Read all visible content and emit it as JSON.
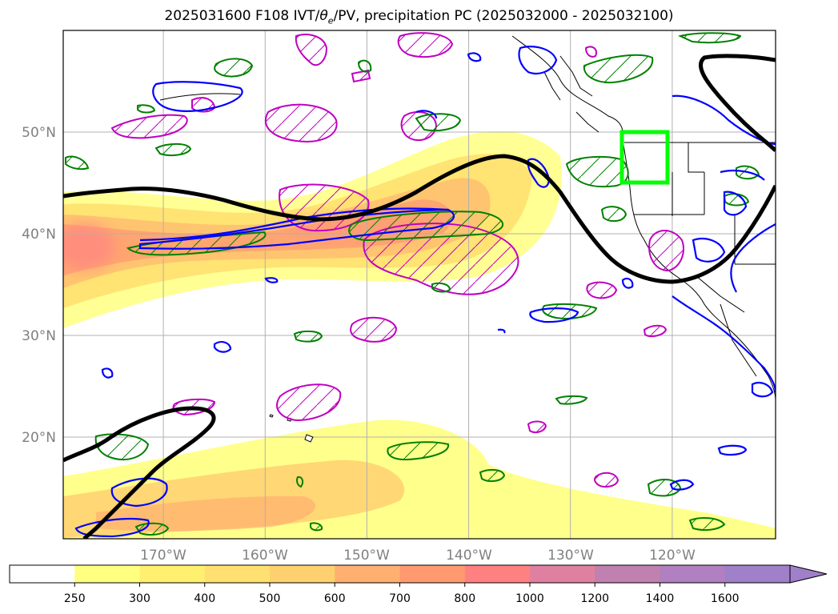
{
  "title": {
    "prefix": "2025031600 F108 IVT/",
    "theta": "θ",
    "sub": "e",
    "suffix": "/PV, precipitation PC (2025032000 - 2025032100)"
  },
  "map": {
    "projection": "PlateCarree",
    "lon_range": [
      -180,
      -110
    ],
    "lat_range": [
      10,
      60
    ],
    "lat_ticks": [
      {
        "value": 50,
        "label": "50°N"
      },
      {
        "value": 40,
        "label": "40°N"
      },
      {
        "value": 30,
        "label": "30°N"
      },
      {
        "value": 20,
        "label": "20°N"
      }
    ],
    "lon_ticks": [
      {
        "value": -170,
        "label": "170°W"
      },
      {
        "value": -160,
        "label": "160°W"
      },
      {
        "value": -150,
        "label": "150°W"
      },
      {
        "value": -140,
        "label": "140°W"
      },
      {
        "value": -130,
        "label": "130°W"
      },
      {
        "value": -120,
        "label": "120°W"
      }
    ],
    "grid": true,
    "highlight_box": {
      "lon": [
        -125,
        -120.5
      ],
      "lat": [
        45,
        50
      ],
      "color": "#00ff00"
    },
    "colors": {
      "theta_e_contour": "#000000",
      "pv_contour": "#0000ff",
      "precip_positive": "#008000",
      "precip_negative": "#c000c0",
      "coastline": "#000000"
    }
  },
  "colorbar": {
    "levels": [
      "250",
      "300",
      "400",
      "500",
      "600",
      "700",
      "800",
      "1000",
      "1200",
      "1400",
      "1600"
    ],
    "colors": [
      "#ffffff",
      "#ffff80",
      "#fff070",
      "#ffe070",
      "#ffd070",
      "#ffb070",
      "#ff9a70",
      "#ff8080",
      "#e080a0",
      "#c080b0",
      "#b080c0",
      "#a080c8"
    ],
    "extend": "max"
  }
}
